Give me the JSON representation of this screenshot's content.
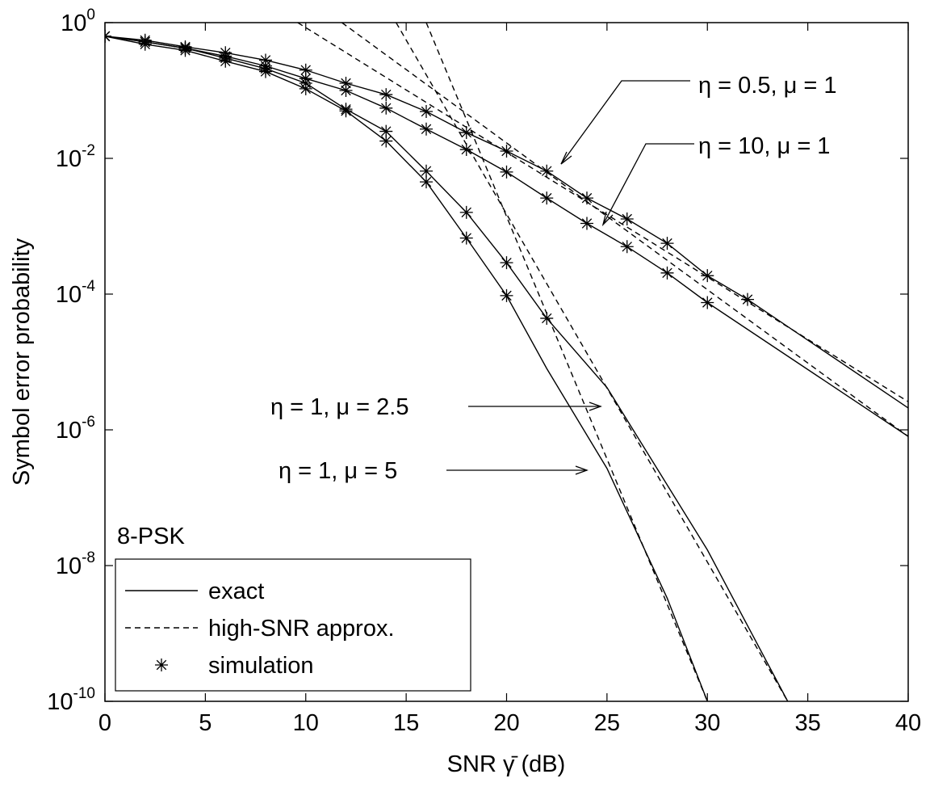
{
  "chart_data": {
    "type": "line",
    "xlabel": "SNR γ̄ (dB)",
    "ylabel": "Symbol error probability",
    "xlim": [
      0,
      40
    ],
    "ylim": [
      1e-10,
      1
    ],
    "log_y": true,
    "xticks": [
      0,
      5,
      10,
      15,
      20,
      25,
      30,
      35,
      40
    ],
    "yticks": [
      {
        "value": 1,
        "label": "10",
        "sup": "0"
      },
      {
        "value": 0.01,
        "label": "10",
        "sup": "-2"
      },
      {
        "value": 0.0001,
        "label": "10",
        "sup": "-4"
      },
      {
        "value": 1e-06,
        "label": "10",
        "sup": "-6"
      },
      {
        "value": 1e-08,
        "label": "10",
        "sup": "-8"
      },
      {
        "value": 1e-10,
        "label": "10",
        "sup": "-10"
      }
    ],
    "color": "#000000",
    "annotation": "8-PSK",
    "legend": {
      "position": "lower left",
      "entries": [
        {
          "name": "exact",
          "style": "solid"
        },
        {
          "name": "high-SNR approx.",
          "style": "dashed"
        },
        {
          "name": "simulation",
          "style": "marker"
        }
      ]
    },
    "curves": [
      {
        "label": "η = 0.5, μ = 1",
        "exact": {
          "x": [
            0,
            2,
            4,
            6,
            8,
            10,
            12,
            14,
            16,
            18,
            20,
            22,
            24,
            26,
            28,
            30,
            32,
            40
          ],
          "values": [
            0.63,
            0.55,
            0.44,
            0.36,
            0.28,
            0.2,
            0.128,
            0.087,
            0.049,
            0.024,
            0.0128,
            0.0065,
            0.0026,
            0.00128,
            0.00056,
            0.000187,
            8.34e-05,
            2.1e-06
          ]
        },
        "approx": {
          "x": [
            9.6,
            40
          ],
          "values": [
            1,
            2.6e-06
          ]
        },
        "simulation": {
          "x": [
            0,
            2,
            4,
            6,
            8,
            10,
            12,
            14,
            16,
            18,
            20,
            22,
            24,
            26,
            28,
            30,
            32
          ],
          "values": [
            0.63,
            0.55,
            0.44,
            0.36,
            0.28,
            0.2,
            0.128,
            0.087,
            0.049,
            0.024,
            0.0128,
            0.0065,
            0.0026,
            0.00128,
            0.00056,
            0.000187,
            8.34e-05
          ]
        }
      },
      {
        "label": "η = 10, μ = 1",
        "exact": {
          "x": [
            0,
            2,
            4,
            6,
            8,
            10,
            12,
            14,
            16,
            18,
            20,
            22,
            24,
            26,
            28,
            30,
            40
          ],
          "values": [
            0.63,
            0.52,
            0.42,
            0.32,
            0.23,
            0.15,
            0.1,
            0.055,
            0.027,
            0.0135,
            0.0063,
            0.0026,
            0.0011,
            0.0005,
            0.000205,
            7.5e-05,
            8e-07
          ]
        },
        "approx": {
          "x": [
            11.8,
            40
          ],
          "values": [
            1,
            8e-07
          ]
        },
        "simulation": {
          "x": [
            0,
            2,
            4,
            6,
            8,
            10,
            12,
            14,
            16,
            18,
            20,
            22,
            24,
            26,
            28,
            30
          ],
          "values": [
            0.63,
            0.52,
            0.42,
            0.32,
            0.23,
            0.15,
            0.1,
            0.055,
            0.027,
            0.0135,
            0.0063,
            0.0026,
            0.0011,
            0.0005,
            0.000205,
            7.5e-05
          ]
        }
      },
      {
        "label": "η = 1, μ = 2.5",
        "exact": {
          "x": [
            0,
            2,
            4,
            6,
            8,
            10,
            12,
            14,
            16,
            18,
            20,
            22,
            25,
            30,
            34
          ],
          "values": [
            0.63,
            0.52,
            0.42,
            0.3,
            0.21,
            0.128,
            0.053,
            0.025,
            0.0065,
            0.0016,
            0.00029,
            4.4e-05,
            4.2e-06,
            1.7e-08,
            1e-10
          ]
        },
        "approx": {
          "x": [
            14.5,
            34
          ],
          "values": [
            1,
            1e-10
          ]
        },
        "simulation": {
          "x": [
            0,
            2,
            4,
            6,
            8,
            10,
            12,
            14,
            16,
            18,
            20,
            22
          ],
          "values": [
            0.63,
            0.52,
            0.42,
            0.3,
            0.21,
            0.128,
            0.053,
            0.025,
            0.0065,
            0.0016,
            0.00029,
            4.4e-05
          ]
        }
      },
      {
        "label": "η = 1, μ = 5",
        "exact": {
          "x": [
            0,
            2,
            4,
            6,
            8,
            10,
            12,
            14,
            16,
            18,
            20,
            22,
            25,
            28,
            30
          ],
          "values": [
            0.63,
            0.48,
            0.39,
            0.27,
            0.19,
            0.106,
            0.05,
            0.018,
            0.0045,
            0.00067,
            9.5e-05,
            8e-06,
            2.7e-07,
            3.3e-09,
            1e-10
          ]
        },
        "approx": {
          "x": [
            16,
            30
          ],
          "values": [
            1,
            1e-10
          ]
        },
        "simulation": {
          "x": [
            0,
            2,
            4,
            6,
            8,
            10,
            12,
            14,
            16,
            18,
            20
          ],
          "values": [
            0.63,
            0.48,
            0.39,
            0.27,
            0.19,
            0.106,
            0.05,
            0.018,
            0.0045,
            0.00067,
            9.5e-05
          ]
        }
      }
    ]
  }
}
